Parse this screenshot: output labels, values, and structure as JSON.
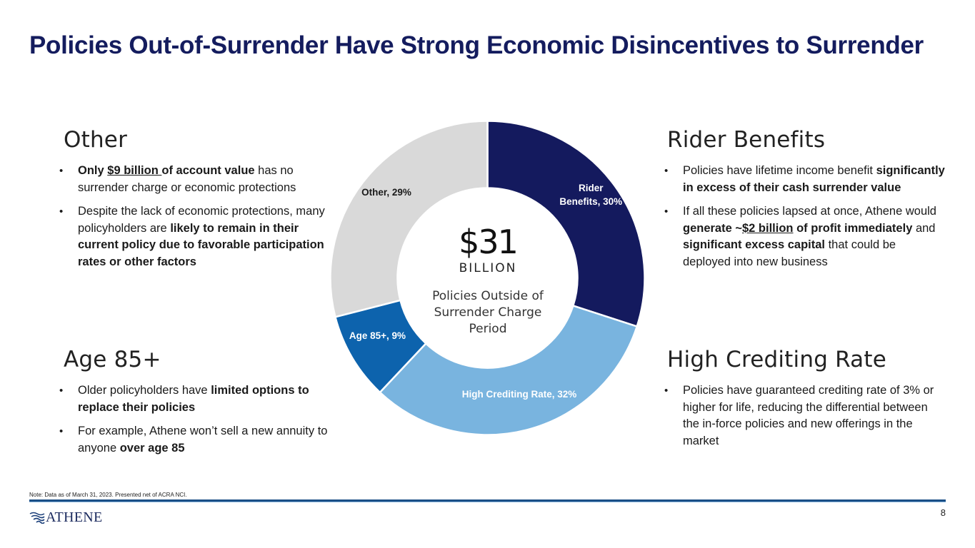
{
  "title": "Policies Out-of-Surrender Have Strong Economic Disincentives to Surrender",
  "sections": {
    "other": {
      "heading": "Other",
      "bullets": [
        [
          {
            "t": "Only ",
            "b": true
          },
          {
            "t": "$9 billion ",
            "b": true,
            "u": true
          },
          {
            "t": "of account value",
            "b": true
          },
          {
            "t": " has no surrender charge or economic protections"
          }
        ],
        [
          {
            "t": "Despite the lack of economic protections, many policyholders are "
          },
          {
            "t": "likely to remain in their current policy due to favorable participation rates or other factors",
            "b": true
          }
        ]
      ]
    },
    "rider": {
      "heading": "Rider Benefits",
      "bullets": [
        [
          {
            "t": "Policies have lifetime income benefit "
          },
          {
            "t": "significantly in excess of their cash surrender value",
            "b": true
          }
        ],
        [
          {
            "t": "If all these policies lapsed at once, Athene would "
          },
          {
            "t": "generate ~",
            "b": true
          },
          {
            "t": "$2 billion",
            "b": true,
            "u": true
          },
          {
            "t": " of profit immediately",
            "b": true
          },
          {
            "t": " and "
          },
          {
            "t": "significant excess capital",
            "b": true
          },
          {
            "t": " that could be deployed into new business"
          }
        ]
      ]
    },
    "age": {
      "heading": "Age 85+",
      "bullets": [
        [
          {
            "t": "Older policyholders have "
          },
          {
            "t": "limited options to replace their policies",
            "b": true
          }
        ],
        [
          {
            "t": "For example, Athene won’t sell a new annuity to anyone "
          },
          {
            "t": "over age 85",
            "b": true
          }
        ]
      ]
    },
    "crediting": {
      "heading": "High Crediting Rate",
      "bullets": [
        [
          {
            "t": "Policies have guaranteed crediting rate of 3% or higher for life, reducing the differential between the in-force policies and new offerings in the market"
          }
        ]
      ]
    }
  },
  "center": {
    "amount": "$31",
    "unit": "BILLION",
    "caption": "Policies Outside of Surrender Charge Period"
  },
  "chart_data": {
    "type": "pie",
    "variant": "donut",
    "start": "12 o'clock, clockwise",
    "slices": [
      {
        "label": "Rider Benefits",
        "value": 30,
        "display": "Rider Benefits, 30%",
        "color": "#141a5e",
        "text_color": "#ffffff"
      },
      {
        "label": "High Crediting Rate",
        "value": 32,
        "display": "High Crediting Rate, 32%",
        "color": "#79b4df",
        "text_color": "#ffffff"
      },
      {
        "label": "Age 85+",
        "value": 9,
        "display": "Age 85+, 9%",
        "color": "#0d63ad",
        "text_color": "#ffffff"
      },
      {
        "label": "Other",
        "value": 29,
        "display": "Other, 29%",
        "color": "#d9d9d9",
        "text_color": "#1a1a1a"
      }
    ]
  },
  "footnote": "Note: Data as of March 31, 2023. Presented net of ACRA NCI.",
  "logo": {
    "text": "ATHENE"
  },
  "page_number": "8"
}
